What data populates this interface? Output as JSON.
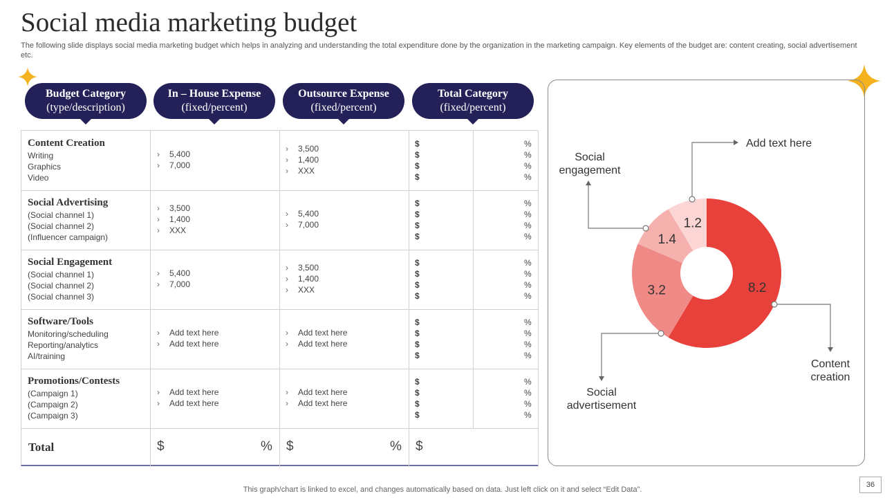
{
  "title": "Social media marketing budget",
  "subtitle": "The following slide displays social media marketing budget which helps in analyzing and understanding the total expenditure done by the organization  in the marketing campaign. Key elements of the budget are: content creating, social advertisement etc.",
  "headers": [
    {
      "line1": "Budget Category",
      "line2": "(type/description)"
    },
    {
      "line1": "In – House Expense",
      "line2": "(fixed/percent)"
    },
    {
      "line1": "Outsource Expense",
      "line2": "(fixed/percent)"
    },
    {
      "line1": "Total Category",
      "line2": "(fixed/percent)"
    }
  ],
  "rows": [
    {
      "name": "Content Creation",
      "items": [
        "Writing",
        "Graphics",
        "Video"
      ],
      "inhouse": [
        "5,400",
        "7,000"
      ],
      "outsource": [
        "3,500",
        "1,400",
        "XXX"
      ]
    },
    {
      "name": "Social Advertising",
      "items": [
        "(Social channel 1)",
        "(Social channel 2)",
        "(Influencer  campaign)"
      ],
      "inhouse": [
        "3,500",
        "1,400",
        "XXX"
      ],
      "outsource": [
        "5,400",
        "7,000"
      ]
    },
    {
      "name": "Social Engagement",
      "items": [
        "(Social channel 1)",
        "(Social channel 2)",
        "(Social channel 3)"
      ],
      "inhouse": [
        "5,400",
        "7,000"
      ],
      "outsource": [
        "3,500",
        "1,400",
        "XXX"
      ]
    },
    {
      "name": "Software/Tools",
      "items": [
        "Monitoring/scheduling",
        "Reporting/analytics",
        "AI/training"
      ],
      "inhouse": [
        "Add text here",
        "Add text here"
      ],
      "outsource": [
        "Add text here",
        "Add text here"
      ]
    },
    {
      "name": "Promotions/Contests",
      "items": [
        "(Campaign  1)",
        "(Campaign  2)",
        "(Campaign  3)"
      ],
      "inhouse": [
        "Add text here",
        "Add text here"
      ],
      "outsource": [
        "Add text here",
        "Add text here"
      ]
    }
  ],
  "symbols": {
    "dollar": "$",
    "percent": "%",
    "chevron": "›"
  },
  "total_label": "Total",
  "chart_data": {
    "type": "pie",
    "style": "donut",
    "categories": [
      "Content creation",
      "Social advertisement",
      "Social engagement",
      "Add text here"
    ],
    "values": [
      8.2,
      3.2,
      1.4,
      1.2
    ],
    "colors": [
      "#e8403a",
      "#f08a87",
      "#f5b1ae",
      "#fbd6d4"
    ],
    "legend": "callouts"
  },
  "footer": "This graph/chart is linked to excel,  and changes automatically based on data. Just left click on it and select “Edit Data”.",
  "page_number": "36",
  "colors": {
    "header_fill": "#232158",
    "star": "#f5b21f"
  }
}
